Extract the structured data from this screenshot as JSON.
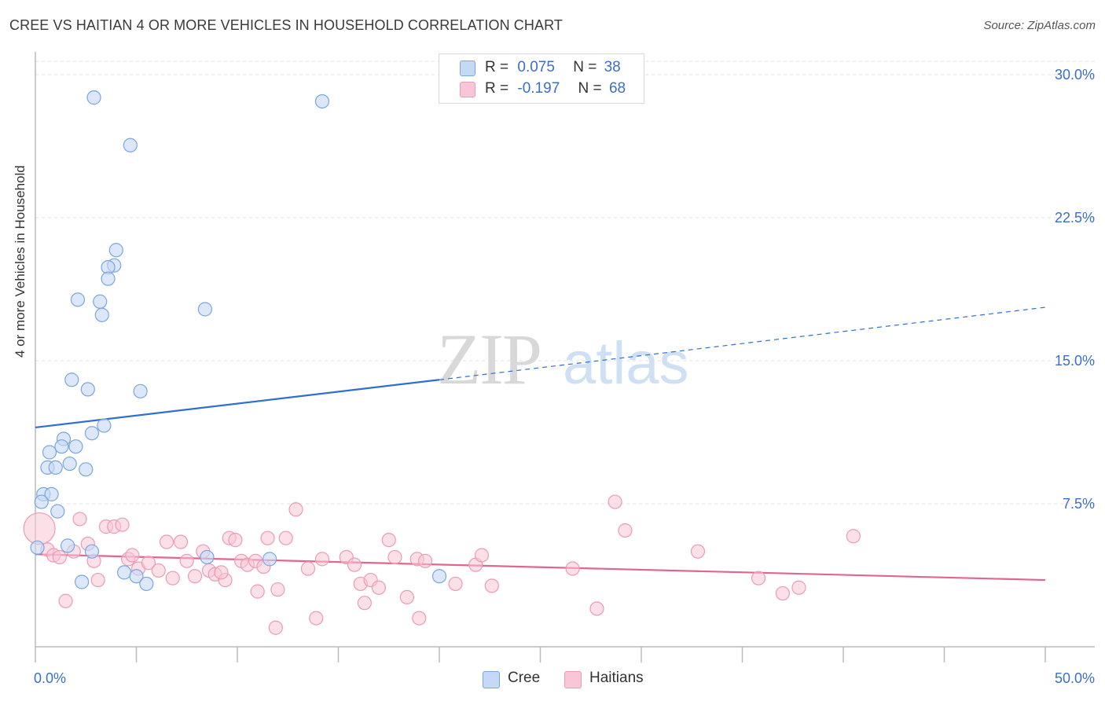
{
  "title": "CREE VS HAITIAN 4 OR MORE VEHICLES IN HOUSEHOLD CORRELATION CHART",
  "source": "Source: ZipAtlas.com",
  "watermark": {
    "zip": "ZIP",
    "atlas": "atlas"
  },
  "legend": {
    "cree": {
      "r_label": "R =",
      "r_value": "0.075",
      "n_label": "N =",
      "n_value": "38"
    },
    "haitians": {
      "r_label": "R =",
      "r_value": "-0.197",
      "n_label": "N =",
      "n_value": "68"
    }
  },
  "colors": {
    "cree_fill": "#c4d9f5",
    "cree_stroke": "#7aa6e0",
    "cree_line": "#2f6fd0",
    "haitians_fill": "#f8c6d6",
    "haitians_stroke": "#ee9ab6",
    "haitians_line": "#e0668f",
    "tick_label": "#3b6fc8"
  },
  "chart_data": {
    "type": "scatter",
    "title": "CREE VS HAITIAN 4 OR MORE VEHICLES IN HOUSEHOLD CORRELATION CHART",
    "xlabel": "",
    "ylabel": "4 or more Vehicles in Household",
    "xlim": [
      0,
      50
    ],
    "ylim": [
      0,
      30
    ],
    "x_tick_labels": [
      "0.0%",
      "50.0%"
    ],
    "y_ticks": [
      7.5,
      15.0,
      22.5,
      30.0
    ],
    "y_tick_labels": [
      "7.5%",
      "15.0%",
      "22.5%",
      "30.0%"
    ],
    "grid": "horizontal dashed",
    "legend_position": "top-center",
    "series": [
      {
        "name": "Cree",
        "points": [
          [
            2.9,
            28.8
          ],
          [
            14.2,
            28.6
          ],
          [
            4.7,
            26.3
          ],
          [
            4.0,
            20.8
          ],
          [
            3.9,
            20.0
          ],
          [
            3.6,
            19.9
          ],
          [
            3.6,
            19.3
          ],
          [
            2.1,
            18.2
          ],
          [
            3.2,
            18.1
          ],
          [
            8.4,
            17.7
          ],
          [
            3.3,
            17.4
          ],
          [
            1.8,
            14.0
          ],
          [
            2.6,
            13.5
          ],
          [
            5.2,
            13.4
          ],
          [
            3.4,
            11.6
          ],
          [
            2.8,
            11.2
          ],
          [
            1.4,
            10.9
          ],
          [
            2.0,
            10.5
          ],
          [
            1.3,
            10.5
          ],
          [
            0.7,
            10.2
          ],
          [
            1.7,
            9.6
          ],
          [
            0.6,
            9.4
          ],
          [
            1.0,
            9.4
          ],
          [
            2.5,
            9.3
          ],
          [
            0.4,
            8.0
          ],
          [
            0.8,
            8.0
          ],
          [
            0.3,
            7.6
          ],
          [
            1.1,
            7.1
          ],
          [
            1.6,
            5.3
          ],
          [
            2.8,
            5.0
          ],
          [
            0.1,
            5.2
          ],
          [
            8.5,
            4.7
          ],
          [
            11.6,
            4.6
          ],
          [
            4.4,
            3.9
          ],
          [
            5.0,
            3.7
          ],
          [
            2.3,
            3.4
          ],
          [
            5.5,
            3.3
          ],
          [
            20.0,
            3.7
          ]
        ],
        "trend": {
          "x_solid": [
            0,
            20
          ],
          "y_solid": [
            11.5,
            14.0
          ],
          "x_dashed": [
            20,
            50
          ],
          "y_dashed": [
            14.0,
            17.8
          ]
        }
      },
      {
        "name": "Haitians",
        "points": [
          [
            0.2,
            6.2
          ],
          [
            0.6,
            5.1
          ],
          [
            0.9,
            4.8
          ],
          [
            1.2,
            4.7
          ],
          [
            1.9,
            5.0
          ],
          [
            2.2,
            6.7
          ],
          [
            2.6,
            5.4
          ],
          [
            2.9,
            4.5
          ],
          [
            3.1,
            3.5
          ],
          [
            3.5,
            6.3
          ],
          [
            3.9,
            6.3
          ],
          [
            4.3,
            6.4
          ],
          [
            4.6,
            4.6
          ],
          [
            4.8,
            4.8
          ],
          [
            5.1,
            4.1
          ],
          [
            5.6,
            4.4
          ],
          [
            6.1,
            4.0
          ],
          [
            6.5,
            5.5
          ],
          [
            6.8,
            3.6
          ],
          [
            7.2,
            5.5
          ],
          [
            7.5,
            4.5
          ],
          [
            7.9,
            3.7
          ],
          [
            8.3,
            5.0
          ],
          [
            8.6,
            4.0
          ],
          [
            8.9,
            3.8
          ],
          [
            9.4,
            3.5
          ],
          [
            9.6,
            5.7
          ],
          [
            9.9,
            5.6
          ],
          [
            10.2,
            4.5
          ],
          [
            10.5,
            4.3
          ],
          [
            10.9,
            4.5
          ],
          [
            11.3,
            4.2
          ],
          [
            11.5,
            5.7
          ],
          [
            12.0,
            3.0
          ],
          [
            12.4,
            5.7
          ],
          [
            12.9,
            7.2
          ],
          [
            13.5,
            4.1
          ],
          [
            14.2,
            4.6
          ],
          [
            15.4,
            4.7
          ],
          [
            15.8,
            4.3
          ],
          [
            16.1,
            3.3
          ],
          [
            16.6,
            3.5
          ],
          [
            17.0,
            3.1
          ],
          [
            17.5,
            5.6
          ],
          [
            17.8,
            4.7
          ],
          [
            18.4,
            2.6
          ],
          [
            18.9,
            4.6
          ],
          [
            19.3,
            4.5
          ],
          [
            20.8,
            3.3
          ],
          [
            21.8,
            4.3
          ],
          [
            22.1,
            4.8
          ],
          [
            22.6,
            3.2
          ],
          [
            26.6,
            4.1
          ],
          [
            28.7,
            7.6
          ],
          [
            29.2,
            6.1
          ],
          [
            32.8,
            5.0
          ],
          [
            35.8,
            3.6
          ],
          [
            37.0,
            2.8
          ],
          [
            37.8,
            3.1
          ],
          [
            40.5,
            5.8
          ],
          [
            1.5,
            2.4
          ],
          [
            13.9,
            1.5
          ],
          [
            11.9,
            1.0
          ],
          [
            19.0,
            1.5
          ],
          [
            16.3,
            2.3
          ],
          [
            27.8,
            2.0
          ],
          [
            11.0,
            2.9
          ],
          [
            9.2,
            3.9
          ]
        ],
        "trend": {
          "x": [
            0,
            50
          ],
          "y": [
            4.85,
            3.5
          ]
        }
      }
    ]
  },
  "bottom_legend": {
    "cree": "Cree",
    "haitians": "Haitians"
  }
}
